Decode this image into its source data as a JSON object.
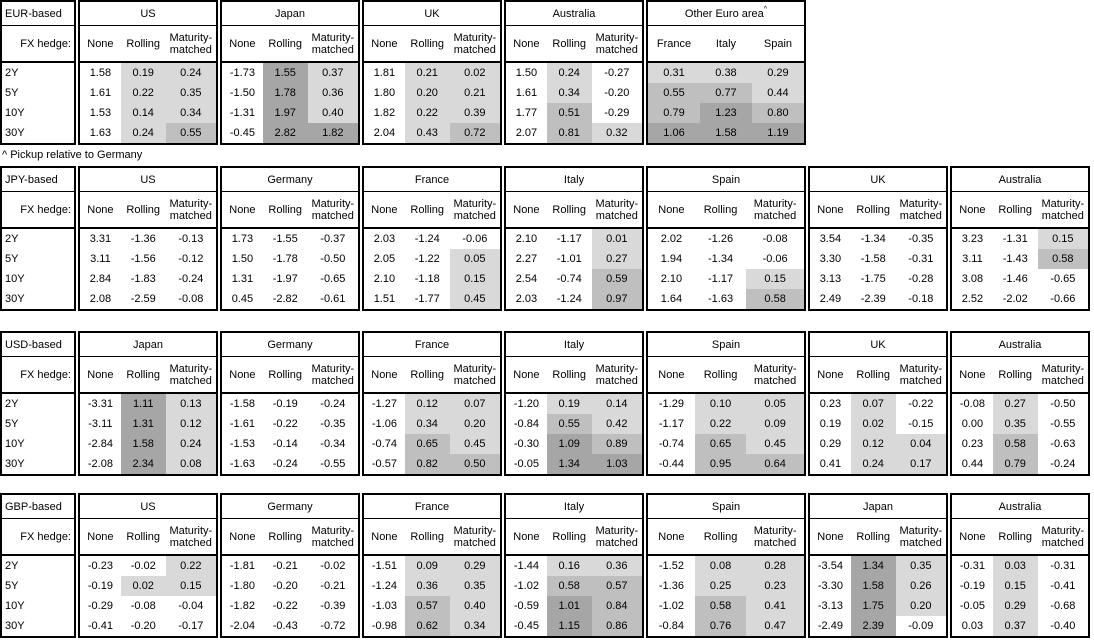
{
  "footnote": "^ Pickup relative to Germany",
  "labels": {
    "hedge": "FX hedge:",
    "tenors": [
      "2Y",
      "5Y",
      "10Y",
      "30Y"
    ],
    "hedge_cols": [
      "None",
      "Rolling",
      "Maturity-matched"
    ]
  },
  "legend": {
    "shading_rule": "value < 0: white; 0 to 0.5: light; 0.5 to 1.0: medium; >= 1.0: dark; None column never shaded",
    "colors": {
      "light": "#d9d9d9",
      "medium": "#bfbfbf",
      "dark": "#a6a6a6",
      "border": "#000000"
    }
  },
  "tables": [
    {
      "name": "EUR-based",
      "groups": [
        {
          "name": "US",
          "rows": [
            [
              "1.58",
              "0.19",
              "0.24"
            ],
            [
              "1.61",
              "0.22",
              "0.35"
            ],
            [
              "1.53",
              "0.14",
              "0.34"
            ],
            [
              "1.63",
              "0.24",
              "0.55"
            ]
          ]
        },
        {
          "name": "Japan",
          "rows": [
            [
              "-1.73",
              "1.55",
              "0.37"
            ],
            [
              "-1.50",
              "1.78",
              "0.36"
            ],
            [
              "-1.31",
              "1.97",
              "0.40"
            ],
            [
              "-0.45",
              "2.82",
              "1.82"
            ]
          ]
        },
        {
          "name": "UK",
          "rows": [
            [
              "1.81",
              "0.21",
              "0.02"
            ],
            [
              "1.80",
              "0.20",
              "0.21"
            ],
            [
              "1.82",
              "0.22",
              "0.39"
            ],
            [
              "2.04",
              "0.43",
              "0.72"
            ]
          ]
        },
        {
          "name": "Australia",
          "rows": [
            [
              "1.50",
              "0.24",
              "-0.27"
            ],
            [
              "1.61",
              "0.34",
              "-0.20"
            ],
            [
              "1.77",
              "0.51",
              "-0.29"
            ],
            [
              "2.07",
              "0.81",
              "0.32"
            ]
          ]
        },
        {
          "name": "Other Euro area",
          "sup": "^",
          "wide": true,
          "equal_cols": true,
          "shade_from": 0,
          "cols": [
            "France",
            "Italy",
            "Spain"
          ],
          "rows": [
            [
              "0.31",
              "0.38",
              "0.29"
            ],
            [
              "0.55",
              "0.77",
              "0.44"
            ],
            [
              "0.79",
              "1.23",
              "0.80"
            ],
            [
              "1.06",
              "1.58",
              "1.19"
            ]
          ]
        }
      ]
    },
    {
      "name": "JPY-based",
      "groups": [
        {
          "name": "US",
          "rows": [
            [
              "3.31",
              "-1.36",
              "-0.13"
            ],
            [
              "3.11",
              "-1.56",
              "-0.12"
            ],
            [
              "2.84",
              "-1.83",
              "-0.24"
            ],
            [
              "2.08",
              "-2.59",
              "-0.08"
            ]
          ]
        },
        {
          "name": "Germany",
          "rows": [
            [
              "1.73",
              "-1.55",
              "-0.37"
            ],
            [
              "1.50",
              "-1.78",
              "-0.50"
            ],
            [
              "1.31",
              "-1.97",
              "-0.65"
            ],
            [
              "0.45",
              "-2.82",
              "-0.61"
            ]
          ]
        },
        {
          "name": "France",
          "rows": [
            [
              "2.03",
              "-1.24",
              "-0.06"
            ],
            [
              "2.05",
              "-1.22",
              "0.05"
            ],
            [
              "2.10",
              "-1.18",
              "0.15"
            ],
            [
              "1.51",
              "-1.77",
              "0.45"
            ]
          ]
        },
        {
          "name": "Italy",
          "rows": [
            [
              "2.10",
              "-1.17",
              "0.01"
            ],
            [
              "2.27",
              "-1.01",
              "0.27"
            ],
            [
              "2.54",
              "-0.74",
              "0.59"
            ],
            [
              "2.03",
              "-1.24",
              "0.97"
            ]
          ]
        },
        {
          "name": "Spain",
          "wide": true,
          "rows": [
            [
              "2.02",
              "-1.26",
              "-0.08"
            ],
            [
              "1.94",
              "-1.34",
              "-0.06"
            ],
            [
              "2.10",
              "-1.17",
              "0.15"
            ],
            [
              "1.64",
              "-1.63",
              "0.58"
            ]
          ]
        },
        {
          "name": "UK",
          "rows": [
            [
              "3.54",
              "-1.34",
              "-0.35"
            ],
            [
              "3.30",
              "-1.58",
              "-0.31"
            ],
            [
              "3.13",
              "-1.75",
              "-0.28"
            ],
            [
              "2.49",
              "-2.39",
              "-0.18"
            ]
          ]
        },
        {
          "name": "Australia",
          "rows": [
            [
              "3.23",
              "-1.31",
              "0.15"
            ],
            [
              "3.11",
              "-1.43",
              "0.58"
            ],
            [
              "3.08",
              "-1.46",
              "-0.65"
            ],
            [
              "2.52",
              "-2.02",
              "-0.66"
            ]
          ]
        }
      ]
    },
    {
      "name": "USD-based",
      "groups": [
        {
          "name": "Japan",
          "rows": [
            [
              "-3.31",
              "1.11",
              "0.13"
            ],
            [
              "-3.11",
              "1.31",
              "0.12"
            ],
            [
              "-2.84",
              "1.58",
              "0.24"
            ],
            [
              "-2.08",
              "2.34",
              "0.08"
            ]
          ]
        },
        {
          "name": "Germany",
          "rows": [
            [
              "-1.58",
              "-0.19",
              "-0.24"
            ],
            [
              "-1.61",
              "-0.22",
              "-0.35"
            ],
            [
              "-1.53",
              "-0.14",
              "-0.34"
            ],
            [
              "-1.63",
              "-0.24",
              "-0.55"
            ]
          ]
        },
        {
          "name": "France",
          "rows": [
            [
              "-1.27",
              "0.12",
              "0.07"
            ],
            [
              "-1.06",
              "0.34",
              "0.20"
            ],
            [
              "-0.74",
              "0.65",
              "0.45"
            ],
            [
              "-0.57",
              "0.82",
              "0.50"
            ]
          ]
        },
        {
          "name": "Italy",
          "rows": [
            [
              "-1.20",
              "0.19",
              "0.14"
            ],
            [
              "-0.84",
              "0.55",
              "0.42"
            ],
            [
              "-0.30",
              "1.09",
              "0.89"
            ],
            [
              "-0.05",
              "1.34",
              "1.03"
            ]
          ]
        },
        {
          "name": "Spain",
          "wide": true,
          "rows": [
            [
              "-1.29",
              "0.10",
              "0.05"
            ],
            [
              "-1.17",
              "0.22",
              "0.09"
            ],
            [
              "-0.74",
              "0.65",
              "0.45"
            ],
            [
              "-0.44",
              "0.95",
              "0.64"
            ]
          ]
        },
        {
          "name": "UK",
          "rows": [
            [
              "0.23",
              "0.07",
              "-0.22"
            ],
            [
              "0.19",
              "0.02",
              "-0.15"
            ],
            [
              "0.29",
              "0.12",
              "0.04"
            ],
            [
              "0.41",
              "0.24",
              "0.17"
            ]
          ]
        },
        {
          "name": "Australia",
          "rows": [
            [
              "-0.08",
              "0.27",
              "-0.50"
            ],
            [
              "0.00",
              "0.35",
              "-0.55"
            ],
            [
              "0.23",
              "0.58",
              "-0.63"
            ],
            [
              "0.44",
              "0.79",
              "-0.24"
            ]
          ]
        }
      ]
    },
    {
      "name": "GBP-based",
      "groups": [
        {
          "name": "US",
          "rows": [
            [
              "-0.23",
              "-0.02",
              "0.22"
            ],
            [
              "-0.19",
              "0.02",
              "0.15"
            ],
            [
              "-0.29",
              "-0.08",
              "-0.04"
            ],
            [
              "-0.41",
              "-0.20",
              "-0.17"
            ]
          ]
        },
        {
          "name": "Germany",
          "rows": [
            [
              "-1.81",
              "-0.21",
              "-0.02"
            ],
            [
              "-1.80",
              "-0.20",
              "-0.21"
            ],
            [
              "-1.82",
              "-0.22",
              "-0.39"
            ],
            [
              "-2.04",
              "-0.43",
              "-0.72"
            ]
          ]
        },
        {
          "name": "France",
          "rows": [
            [
              "-1.51",
              "0.09",
              "0.29"
            ],
            [
              "-1.24",
              "0.36",
              "0.35"
            ],
            [
              "-1.03",
              "0.57",
              "0.40"
            ],
            [
              "-0.98",
              "0.62",
              "0.34"
            ]
          ]
        },
        {
          "name": "Italy",
          "rows": [
            [
              "-1.44",
              "0.16",
              "0.36"
            ],
            [
              "-1.02",
              "0.58",
              "0.57"
            ],
            [
              "-0.59",
              "1.01",
              "0.84"
            ],
            [
              "-0.45",
              "1.15",
              "0.86"
            ]
          ]
        },
        {
          "name": "Spain",
          "wide": true,
          "rows": [
            [
              "-1.52",
              "0.08",
              "0.28"
            ],
            [
              "-1.36",
              "0.25",
              "0.23"
            ],
            [
              "-1.02",
              "0.58",
              "0.41"
            ],
            [
              "-0.84",
              "0.76",
              "0.47"
            ]
          ]
        },
        {
          "name": "Japan",
          "rows": [
            [
              "-3.54",
              "1.34",
              "0.35"
            ],
            [
              "-3.30",
              "1.58",
              "0.26"
            ],
            [
              "-3.13",
              "1.75",
              "0.20"
            ],
            [
              "-2.49",
              "2.39",
              "-0.09"
            ]
          ]
        },
        {
          "name": "Australia",
          "rows": [
            [
              "-0.31",
              "0.03",
              "-0.31"
            ],
            [
              "-0.19",
              "0.15",
              "-0.41"
            ],
            [
              "-0.05",
              "0.29",
              "-0.68"
            ],
            [
              "0.03",
              "0.37",
              "-0.40"
            ]
          ]
        }
      ]
    }
  ]
}
